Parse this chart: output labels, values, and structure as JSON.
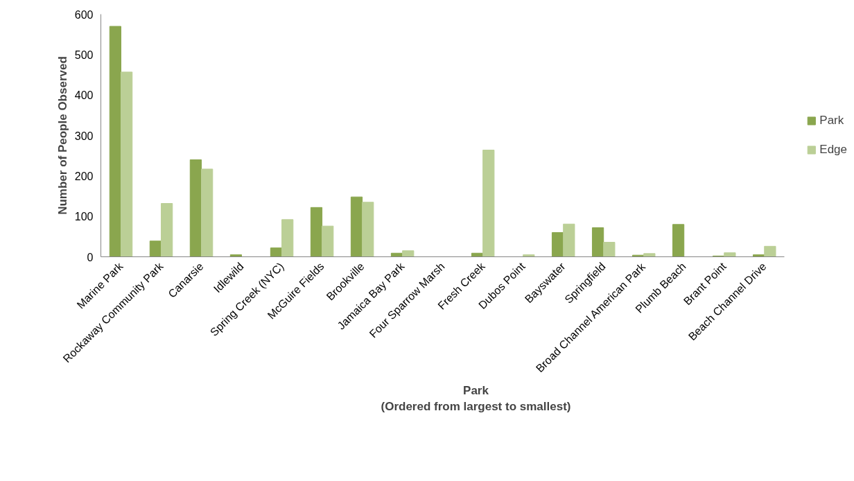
{
  "chart_data": {
    "type": "bar",
    "xlabel": "Park\n(Ordered from largest to smallest)",
    "ylabel": "Number of People Observed",
    "categories": [
      "Marine Park",
      "Rockaway Community Park",
      "Canarsie",
      "Idlewild",
      "Spring Creek (NYC)",
      "McGuire Fields",
      "Brookville",
      "Jamaica Bay Park",
      "Four Sparrow Marsh",
      "Fresh Creek",
      "Dubos Point",
      "Bayswater",
      "Springfield",
      "Broad Channel American Park",
      "Plumb Beach",
      "Brant Point",
      "Beach Channel Drive"
    ],
    "series": [
      {
        "name": "Park",
        "color": "#8aa64e",
        "values": [
          570,
          39,
          240,
          5,
          22,
          122,
          148,
          9,
          0,
          9,
          0,
          60,
          72,
          4,
          80,
          2,
          5
        ]
      },
      {
        "name": "Edge",
        "color": "#bbcf96",
        "values": [
          457,
          132,
          217,
          0,
          92,
          76,
          135,
          15,
          0,
          264,
          5,
          81,
          36,
          8,
          0,
          10,
          26
        ]
      }
    ],
    "ylim": [
      0,
      600
    ],
    "yticks": [
      0,
      100,
      200,
      300,
      400,
      500,
      600
    ],
    "legend": "right"
  }
}
